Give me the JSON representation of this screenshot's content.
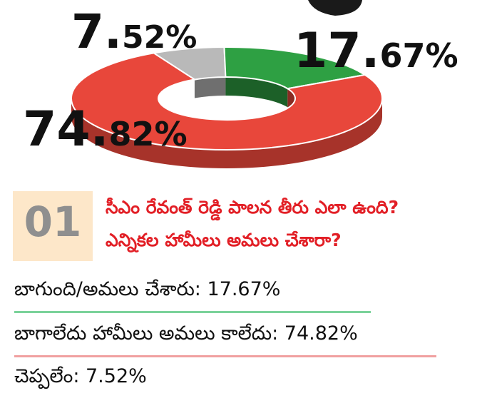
{
  "chart_data": {
    "type": "pie",
    "style": "donut",
    "slices": [
      {
        "label": "17.67%",
        "value": 17.67,
        "color": "#2ea043"
      },
      {
        "label": "74.82%",
        "value": 74.82,
        "color": "#e8473b"
      },
      {
        "label": "7.52%",
        "value": 7.52,
        "color": "#b9b9b9"
      }
    ]
  },
  "labels": {
    "green": {
      "num": "17.",
      "dec": "67%"
    },
    "red": {
      "num": "74.",
      "dec": "82%"
    },
    "gray": {
      "num": "7.",
      "dec": "52%"
    }
  },
  "question": {
    "number": "01",
    "line1": "సీఎం రేవంత్ రెడ్డి పాలన తీరు ఎలా ఉంది?",
    "line2": "ఎన్నికల హామీలు అమలు చేశారా?"
  },
  "answers": [
    {
      "text": "బాగుంది/అమలు చేశారు: 17.67%",
      "color": "#7bd29a"
    },
    {
      "text": "బాగాలేదు హామీలు అమలు కాలేదు: 74.82%",
      "color": "#f0a0a0"
    },
    {
      "text": "చెప్పలేం: 7.52%"
    }
  ]
}
